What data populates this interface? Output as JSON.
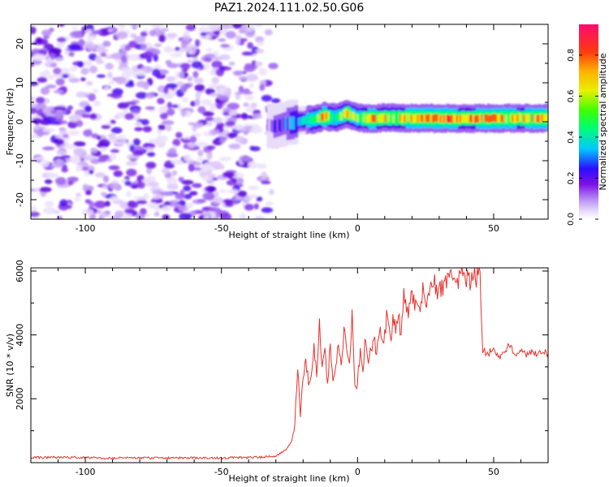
{
  "title": "PAZ1.2024.111.02.50.G06",
  "chart_data": [
    {
      "type": "heatmap",
      "xlabel": "Height of straight line (km)",
      "ylabel": "Frequency (Hz)",
      "xlim": [
        -120,
        70
      ],
      "ylim": [
        -25,
        25
      ],
      "xticks": [
        -100,
        -50,
        0,
        50
      ],
      "yticks": [
        -20,
        -10,
        0,
        10,
        20
      ],
      "colorbar": {
        "label": "Normalized spectral amplitude",
        "range": [
          0.0,
          0.95
        ],
        "ticks": [
          0.0,
          0.2,
          0.4,
          0.6,
          0.8
        ],
        "colormap": [
          "#e8dcfb",
          "#a060f0",
          "#6a00e0",
          "#1a10ff",
          "#00e0ff",
          "#00ff40",
          "#c8ff00",
          "#ffd000",
          "#ff5000",
          "#ff1040",
          "#ff1080"
        ]
      },
      "features": {
        "noise_region_x": [
          -120,
          -30
        ],
        "signal_ridge": {
          "x": [
            -33,
            -30,
            -27,
            -24,
            -20,
            -16,
            -12,
            -8,
            -4,
            0,
            5,
            10,
            20,
            30,
            40,
            50,
            60,
            70
          ],
          "freq": [
            -1.0,
            -1.2,
            -0.6,
            -0.2,
            0.3,
            0.6,
            1.4,
            1.0,
            2.2,
            1.0,
            0.8,
            1.0,
            0.9,
            0.9,
            0.8,
            0.9,
            0.9,
            0.9
          ],
          "amplitude": [
            0.1,
            0.15,
            0.2,
            0.3,
            0.35,
            0.5,
            0.72,
            0.5,
            0.65,
            0.55,
            0.7,
            0.62,
            0.68,
            0.7,
            0.65,
            0.7,
            0.66,
            0.7
          ]
        }
      }
    },
    {
      "type": "line",
      "xlabel": "Height of straight line (km)",
      "ylabel": "SNR (10 * v/v)",
      "xlim": [
        -120,
        70
      ],
      "ylim": [
        0,
        6100
      ],
      "xticks": [
        -100,
        -50,
        0,
        50
      ],
      "yticks": [
        2000,
        4000,
        6000
      ],
      "color": "#e8322d",
      "x": [
        -120,
        -110,
        -100,
        -90,
        -80,
        -70,
        -60,
        -50,
        -40,
        -35,
        -30,
        -28,
        -26,
        -24,
        -23,
        -22,
        -21,
        -20,
        -19,
        -18,
        -17,
        -16,
        -15,
        -14,
        -13,
        -12,
        -11,
        -10,
        -9,
        -8,
        -7,
        -6,
        -5,
        -4,
        -3,
        -2,
        -1,
        0,
        1,
        2,
        3,
        4,
        5,
        6,
        7,
        8,
        9,
        10,
        11,
        12,
        13,
        14,
        15,
        16,
        17,
        18,
        19,
        20,
        22,
        24,
        26,
        28,
        30,
        32,
        34,
        36,
        38,
        40,
        42,
        44,
        45,
        46,
        48,
        50,
        52,
        54,
        56,
        58,
        60,
        62,
        64,
        66,
        68,
        70
      ],
      "y": [
        150,
        170,
        160,
        140,
        150,
        145,
        150,
        150,
        160,
        170,
        220,
        300,
        420,
        700,
        1200,
        3100,
        1500,
        2600,
        3300,
        2400,
        2900,
        3700,
        2800,
        4400,
        3100,
        3400,
        2600,
        3600,
        2500,
        3200,
        3700,
        3000,
        4100,
        3400,
        3000,
        4800,
        2300,
        2500,
        3600,
        3000,
        4000,
        3300,
        3600,
        3900,
        3500,
        4300,
        3600,
        4100,
        4700,
        3800,
        4500,
        4200,
        4800,
        4000,
        5300,
        4600,
        4900,
        5100,
        4700,
        5400,
        5000,
        5700,
        5300,
        5500,
        5900,
        5400,
        6000,
        5800,
        5700,
        5900,
        5800,
        3500,
        3400,
        3600,
        3300,
        3500,
        3700,
        3300,
        3500,
        3400,
        3500,
        3400,
        3500,
        3400
      ]
    }
  ]
}
